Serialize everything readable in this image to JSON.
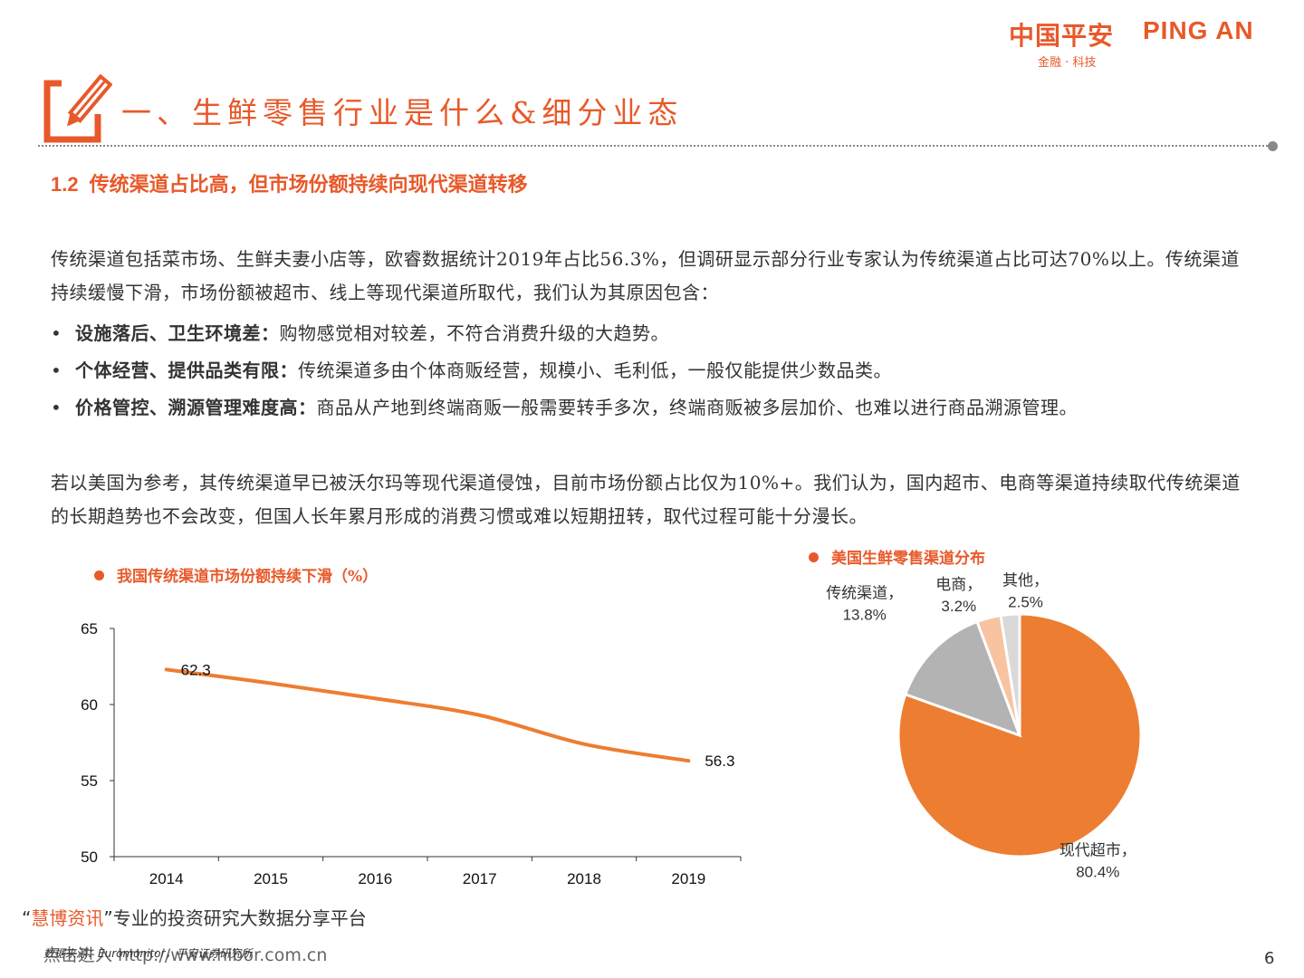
{
  "logo": {
    "cn": "中国平安",
    "en": "PING AN",
    "sub": "金融 · 科技"
  },
  "title": "一、生鲜零售行业是什么&细分业态",
  "subtitle": {
    "number": "1.2",
    "text": "传统渠道占比高，但市场份额持续向现代渠道转移"
  },
  "para1": "传统渠道包括菜市场、生鲜夫妻小店等，欧睿数据统计2019年占比56.3%，但调研显示部分行业专家认为传统渠道占比可达70%以上。传统渠道持续缓慢下滑，市场份额被超市、线上等现代渠道所取代，我们认为其原因包含：",
  "bullets": [
    {
      "bold": "设施落后、卫生环境差：",
      "text": "购物感觉相对较差，不符合消费升级的大趋势。"
    },
    {
      "bold": "个体经营、提供品类有限：",
      "text": "传统渠道多由个体商贩经营，规模小、毛利低，一般仅能提供少数品类。"
    },
    {
      "bold": "价格管控、溯源管理难度高：",
      "text": "商品从产地到终端商贩一般需要转手多次，终端商贩被多层加价、也难以进行商品溯源管理。"
    }
  ],
  "para2": "若以美国为参考，其传统渠道早已被沃尔玛等现代渠道侵蚀，目前市场份额占比仅为10%+。我们认为，国内超市、电商等渠道持续取代传统渠道的长期趋势也不会改变，但国人长年累月形成的消费习惯或难以短期扭转，取代过程可能十分漫长。",
  "colors": {
    "accent": "#e8592a",
    "line": "#ed7d31",
    "pie_modern": "#ed7d31",
    "pie_traditional": "#b3b3b3",
    "pie_ecommerce": "#f8c3a0",
    "pie_other": "#d9d9d9"
  },
  "chart_data": [
    {
      "type": "line",
      "title": "我国传统渠道市场份额持续下滑（%）",
      "x": [
        "2014",
        "2015",
        "2016",
        "2017",
        "2018",
        "2019"
      ],
      "series": [
        {
          "values": [
            62.3,
            61.4,
            60.4,
            59.3,
            57.4,
            56.3
          ]
        }
      ],
      "data_labels": {
        "2014": "62.3",
        "2019": "56.3"
      },
      "ylim": [
        50,
        65
      ],
      "yticks": [
        "50",
        "55",
        "60",
        "65"
      ],
      "grid": false,
      "legend": "none"
    },
    {
      "type": "pie",
      "title": "美国生鲜零售渠道分布",
      "slices": [
        {
          "name": "现代超市",
          "value": 80.4,
          "label": "80.4%"
        },
        {
          "name": "传统渠道",
          "value": 13.8,
          "label": "13.8%"
        },
        {
          "name": "电商",
          "value": 3.2,
          "label": "3.2%"
        },
        {
          "name": "其他",
          "value": 2.5,
          "label": "2.5%"
        }
      ]
    }
  ],
  "footer": {
    "brand_open": "“",
    "brand_name": "慧博资讯",
    "brand_close": "”专业的投资研究大数据分享平台",
    "url": "点击进入 http://www.hibor.com.cn",
    "source": "数据来源：Euromonitor，平安证券研究所",
    "page": "6"
  }
}
